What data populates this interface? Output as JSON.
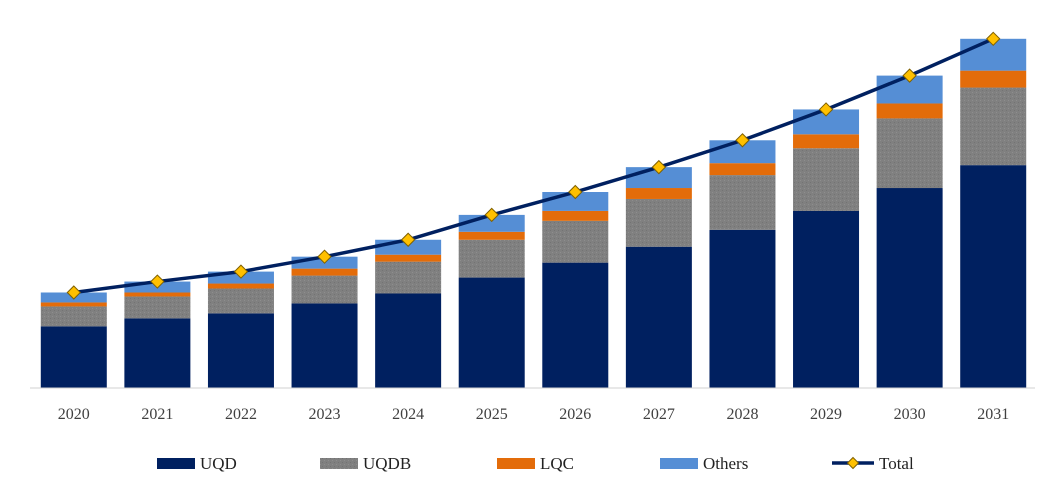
{
  "chart_data": {
    "type": "bar",
    "stacked": true,
    "categories": [
      "2020",
      "2021",
      "2022",
      "2023",
      "2024",
      "2025",
      "2026",
      "2027",
      "2028",
      "2029",
      "2030",
      "2031"
    ],
    "series": [
      {
        "name": "UQD",
        "color": "#002060",
        "pattern": "solid",
        "values": [
          62,
          70,
          75,
          85,
          95,
          111,
          126,
          142,
          159,
          178,
          201,
          224
        ]
      },
      {
        "name": "UQDB",
        "color": "#808080",
        "pattern": "textured",
        "values": [
          20,
          22,
          25,
          28,
          32,
          38,
          42,
          48,
          55,
          63,
          70,
          78
        ]
      },
      {
        "name": "LQC",
        "color": "#E36C0A",
        "pattern": "solid",
        "values": [
          4,
          4,
          5,
          7,
          7,
          8,
          10,
          11,
          12,
          14,
          15,
          17
        ]
      },
      {
        "name": "Others",
        "color": "#558ED5",
        "pattern": "solid",
        "values": [
          10,
          11,
          12,
          12,
          15,
          17,
          19,
          21,
          23,
          25,
          28,
          32
        ]
      }
    ],
    "line_series": {
      "name": "Total",
      "color": "#002060",
      "marker": "diamond",
      "marker_color": "#FFC000",
      "values": [
        96,
        107,
        117,
        132,
        149,
        174,
        197,
        222,
        249,
        280,
        314,
        351
      ]
    },
    "ylim": [
      0,
      390
    ],
    "show_y_axis": false,
    "grid": false,
    "legend": "bottom"
  }
}
